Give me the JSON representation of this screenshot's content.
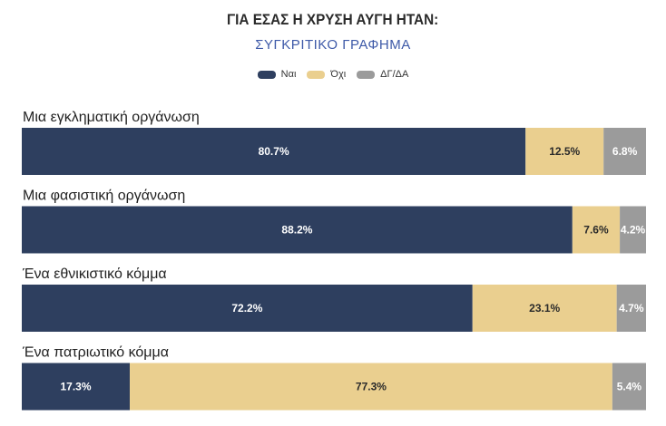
{
  "chart_data": {
    "type": "bar",
    "orientation": "horizontal",
    "stacked": true,
    "title": "ΓΙΑ ΕΣΑΣ Η ΧΡΥΣΗ ΑΥΓΗ ΗΤΑΝ:",
    "subtitle": "ΣΥΓΚΡΙΤΙΚΟ ΓΡΑΦΗΜΑ",
    "title_color": "#2a2a2a",
    "subtitle_color": "#3e5aa8",
    "unit": "%",
    "xlim": [
      0,
      100
    ],
    "grid": false,
    "legend_position": "top",
    "categories": [
      "Μια εγκληματική οργάνωση",
      "Μια φασιστική οργάνωση",
      "Ένα εθνικιστικό κόμμα",
      "Ένα πατριωτικό κόμμα"
    ],
    "series": [
      {
        "name": "Ναι",
        "color": "#2e3f5f",
        "label_color": "#ffffff",
        "values": [
          80.7,
          88.2,
          72.2,
          17.3
        ]
      },
      {
        "name": "Όχι",
        "color": "#eacf8f",
        "label_color": "#2a2a2a",
        "values": [
          12.5,
          7.6,
          23.1,
          77.3
        ]
      },
      {
        "name": "ΔΓ/ΔΑ",
        "color": "#9b9b9b",
        "label_color": "#ffffff",
        "values": [
          6.8,
          4.2,
          4.7,
          5.4
        ]
      }
    ]
  }
}
